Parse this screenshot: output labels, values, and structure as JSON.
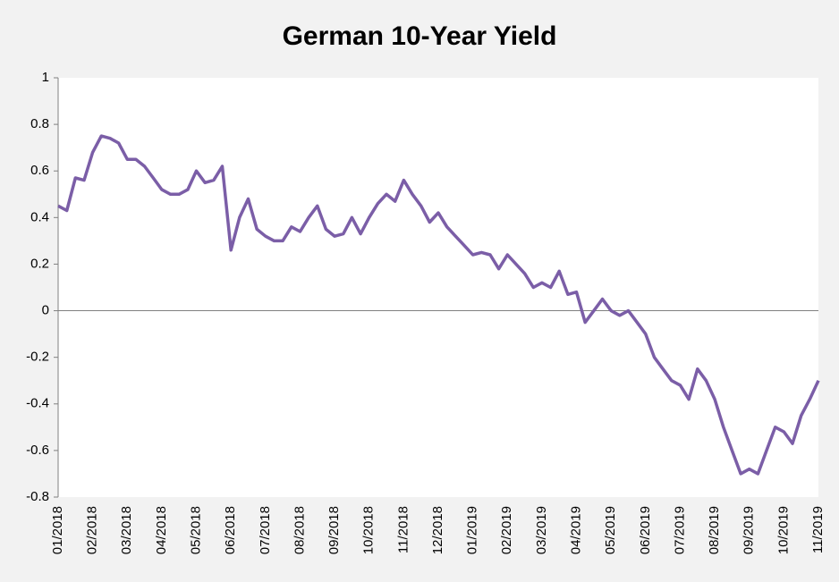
{
  "chart_data": {
    "type": "line",
    "title": "German 10-Year Yield",
    "categories": [
      "01/2018",
      null,
      null,
      null,
      "02/2018",
      null,
      null,
      null,
      "03/2018",
      null,
      null,
      null,
      "04/2018",
      null,
      null,
      null,
      "05/2018",
      null,
      null,
      null,
      "06/2018",
      null,
      null,
      null,
      "07/2018",
      null,
      null,
      null,
      "08/2018",
      null,
      null,
      null,
      "09/2018",
      null,
      null,
      null,
      "10/2018",
      null,
      null,
      null,
      "11/2018",
      null,
      null,
      null,
      "12/2018",
      null,
      null,
      null,
      "01/2019",
      null,
      null,
      null,
      "02/2019",
      null,
      null,
      null,
      "03/2019",
      null,
      null,
      null,
      "04/2019",
      null,
      null,
      null,
      "05/2019",
      null,
      null,
      null,
      "06/2019",
      null,
      null,
      null,
      "07/2019",
      null,
      null,
      null,
      "08/2019",
      null,
      null,
      null,
      "09/2019",
      null,
      null,
      null,
      "10/2019",
      null,
      null,
      null,
      "11/2019"
    ],
    "values": [
      0.45,
      0.43,
      0.57,
      0.56,
      0.68,
      0.75,
      0.74,
      0.72,
      0.65,
      0.65,
      0.62,
      0.57,
      0.52,
      0.5,
      0.5,
      0.52,
      0.6,
      0.55,
      0.56,
      0.62,
      0.26,
      0.4,
      0.48,
      0.35,
      0.32,
      0.3,
      0.3,
      0.36,
      0.34,
      0.4,
      0.45,
      0.35,
      0.32,
      0.33,
      0.4,
      0.33,
      0.4,
      0.46,
      0.5,
      0.47,
      0.56,
      0.5,
      0.45,
      0.38,
      0.42,
      0.36,
      0.32,
      0.28,
      0.24,
      0.25,
      0.24,
      0.18,
      0.24,
      0.2,
      0.16,
      0.1,
      0.12,
      0.1,
      0.17,
      0.07,
      0.08,
      -0.05,
      0.0,
      0.05,
      0.0,
      -0.02,
      0.0,
      -0.05,
      -0.1,
      -0.2,
      -0.25,
      -0.3,
      -0.32,
      -0.38,
      -0.25,
      -0.3,
      -0.38,
      -0.5,
      -0.6,
      -0.7,
      -0.68,
      -0.7,
      -0.6,
      -0.5,
      -0.52,
      -0.57,
      -0.45,
      -0.38,
      -0.3
    ],
    "color": "#7b5ea7",
    "ylim": [
      -0.8,
      1
    ],
    "yticks": [
      -0.8,
      -0.6,
      -0.4,
      -0.2,
      0,
      0.2,
      0.4,
      0.6,
      0.8,
      1
    ]
  }
}
